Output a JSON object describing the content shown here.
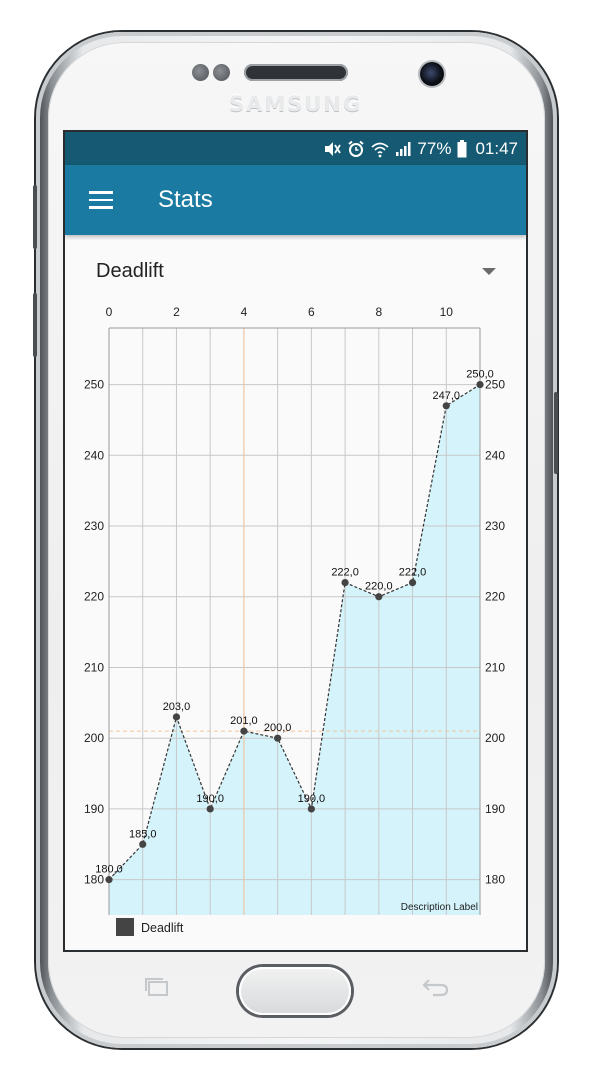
{
  "device": {
    "brand": "SAMSUNG",
    "frame_color": "#f2f3f4",
    "icons": [
      "earpiece-speaker-icon",
      "front-camera-icon",
      "recent-apps-icon",
      "home-button-icon",
      "back-icon"
    ]
  },
  "status_bar": {
    "icons": [
      "mute-icon",
      "alarm-icon",
      "wifi-icon",
      "signal-icon",
      "battery-icon"
    ],
    "battery": "77%",
    "time": "01:47",
    "background": "#155a72"
  },
  "app_bar": {
    "title": "Stats",
    "menu_icon": "hamburger-menu-icon",
    "background": "#1a7aa1"
  },
  "exercise_selector": {
    "selected": "Deadlift",
    "icon": "dropdown-arrow-icon"
  },
  "chart_data": {
    "type": "line",
    "filled": true,
    "x": [
      0,
      1,
      2,
      3,
      4,
      5,
      6,
      7,
      8,
      9,
      10,
      11
    ],
    "series": [
      {
        "name": "Deadlift",
        "values": [
          180.0,
          185.0,
          203.0,
          190.0,
          201.0,
          200.0,
          190.0,
          222.0,
          220.0,
          222.0,
          247.0,
          250.0
        ],
        "value_labels": [
          "180,0",
          "185,0",
          "203,0",
          "190,0",
          "201,0",
          "200,0",
          "190,0",
          "222,0",
          "220,0",
          "222,0",
          "247,0",
          "250,0"
        ],
        "line_color": "#333333",
        "line_style": "dashed",
        "fill_color": "#d4f3fb",
        "point_color": "#444444"
      }
    ],
    "xaxis": {
      "position": "top",
      "range": [
        0,
        11
      ],
      "ticks": [
        0,
        2,
        4,
        6,
        8,
        10
      ],
      "tick_labels": [
        "0",
        "2",
        "4",
        "6",
        "8",
        "10"
      ]
    },
    "yaxis": {
      "range": [
        175,
        258
      ],
      "ticks": [
        180,
        190,
        200,
        210,
        220,
        230,
        240,
        250
      ],
      "tick_labels": [
        "180",
        "190",
        "200",
        "210",
        "220",
        "230",
        "240",
        "250"
      ],
      "show_left": true,
      "show_right": true
    },
    "limit_lines": {
      "vertical_x": 4,
      "horizontal_y": 201,
      "color": "#f4c39a"
    },
    "grid": true,
    "grid_color": "#c8c8c8",
    "description": "Description Label",
    "legend": {
      "position": "bottom-left",
      "entries": [
        {
          "label": "Deadlift",
          "color": "#444444"
        }
      ]
    },
    "title": "",
    "xlabel": "",
    "ylabel": ""
  }
}
